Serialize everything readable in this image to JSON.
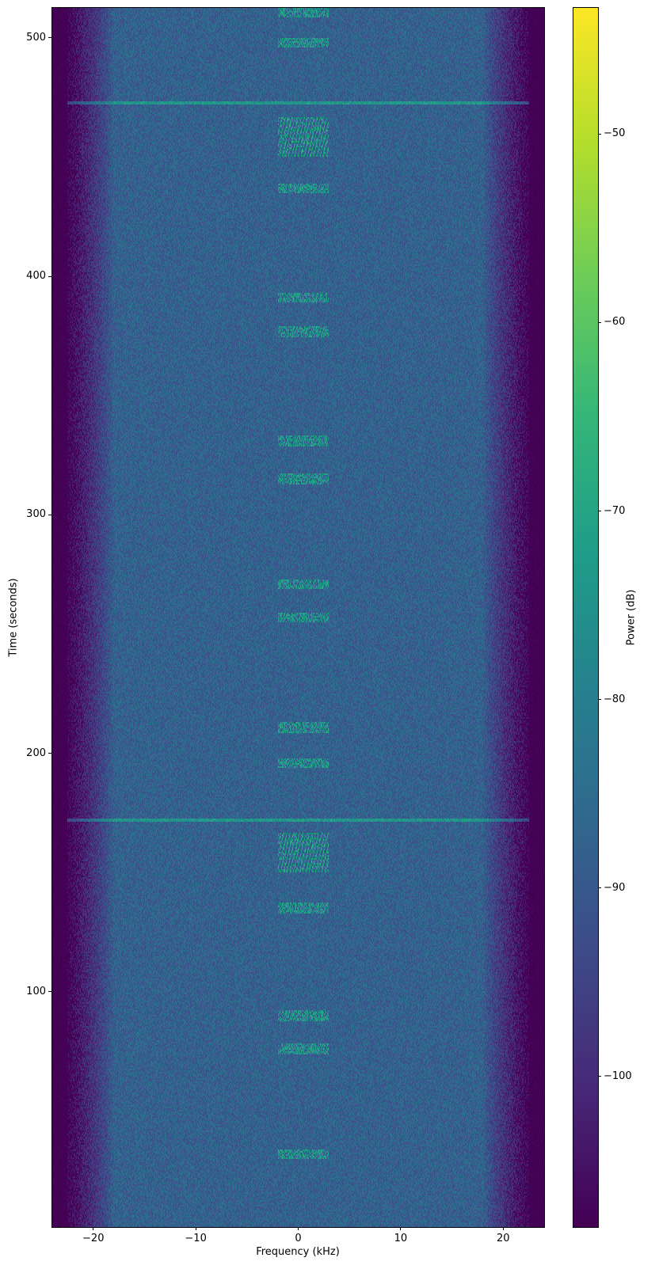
{
  "chart_data": {
    "type": "heatmap",
    "title": "",
    "xlabel": "Frequency (kHz)",
    "ylabel": "Time (seconds)",
    "xlim": [
      -24,
      24
    ],
    "ylim": [
      1.4,
      512.6
    ],
    "xticks": [
      -20,
      -10,
      0,
      10,
      20
    ],
    "xtick_labels": [
      "−20",
      "−10",
      "0",
      "10",
      "20"
    ],
    "yticks": [
      100,
      200,
      300,
      400,
      500
    ],
    "ytick_labels": [
      "100",
      "200",
      "300",
      "400",
      "500"
    ],
    "colorbar": {
      "label": "Power (dB)",
      "colormap": "viridis",
      "range": [
        -108,
        -43.3
      ],
      "ticks": [
        -100,
        -90,
        -80,
        -70,
        -60,
        -50
      ],
      "tick_labels": [
        "−100",
        "−90",
        "−80",
        "−70",
        "−60",
        "−50"
      ]
    },
    "background_power_db": -88,
    "edge_rolloff_khz": [
      -18,
      18
    ],
    "edge_power_db": -108,
    "broadband_lines_s": [
      473,
      172
    ],
    "burst_band_khz": [
      -2,
      3
    ],
    "bursts_s": [
      511,
      498,
      437,
      391,
      377,
      331,
      315,
      271,
      257,
      211,
      196,
      135,
      90,
      76,
      32
    ],
    "burst_blocks_s": [
      [
        450,
        467
      ],
      [
        150,
        167
      ]
    ],
    "grid": false
  }
}
